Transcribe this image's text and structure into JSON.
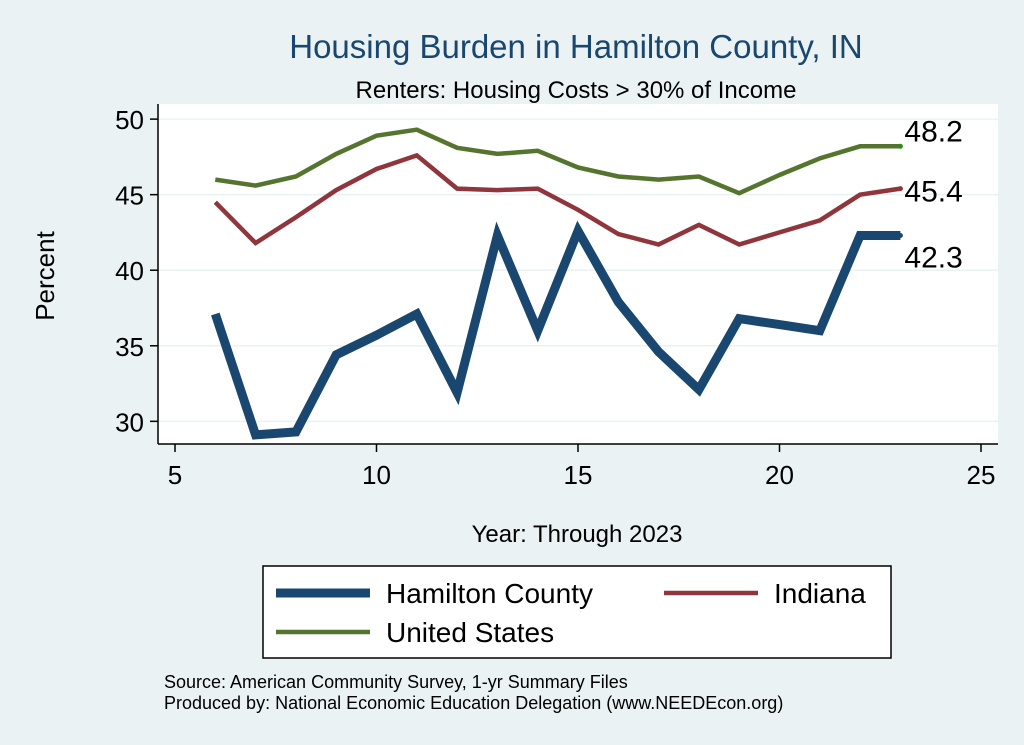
{
  "chart_data": {
    "type": "line",
    "title": "Housing Burden in Hamilton County, IN",
    "subtitle": "Renters: Housing Costs > 30% of Income",
    "xlabel": "Year: Through 2023",
    "ylabel": "Percent",
    "xlim": [
      5,
      25
    ],
    "ylim": [
      28.5,
      51
    ],
    "xticks": [
      5,
      10,
      15,
      20,
      25
    ],
    "yticks": [
      30,
      35,
      40,
      45,
      50
    ],
    "grid": true,
    "legend_position": "bottom",
    "x": [
      6,
      7,
      8,
      9,
      10,
      11,
      12,
      13,
      14,
      15,
      16,
      17,
      18,
      19,
      20,
      21,
      22,
      23
    ],
    "series": [
      {
        "name": "Hamilton County",
        "color": "#1a476f",
        "values": [
          37.1,
          29.1,
          29.3,
          34.4,
          35.7,
          37.1,
          31.9,
          42.3,
          36.0,
          42.6,
          37.9,
          34.6,
          32.1,
          36.8,
          36.4,
          36.0,
          42.3,
          42.3
        ],
        "end_label": "42.3"
      },
      {
        "name": "Indiana",
        "color": "#90353b",
        "values": [
          44.5,
          41.8,
          43.5,
          45.3,
          46.7,
          47.6,
          45.4,
          45.3,
          45.4,
          44.0,
          42.4,
          41.7,
          43.0,
          41.7,
          42.5,
          43.3,
          45.0,
          45.4
        ],
        "end_label": "45.4"
      },
      {
        "name": "United States",
        "color": "#55752f",
        "values": [
          46.0,
          45.6,
          46.2,
          47.7,
          48.9,
          49.3,
          48.1,
          47.7,
          47.9,
          46.8,
          46.2,
          46.0,
          46.2,
          45.1,
          46.3,
          47.4,
          48.2,
          48.2
        ],
        "end_label": "48.2"
      }
    ]
  },
  "notes": {
    "source": "Source: American Community Survey, 1-yr Summary Files",
    "producer": "Produced by: National Economic Education Delegation (www.NEEDEcon.org)"
  }
}
